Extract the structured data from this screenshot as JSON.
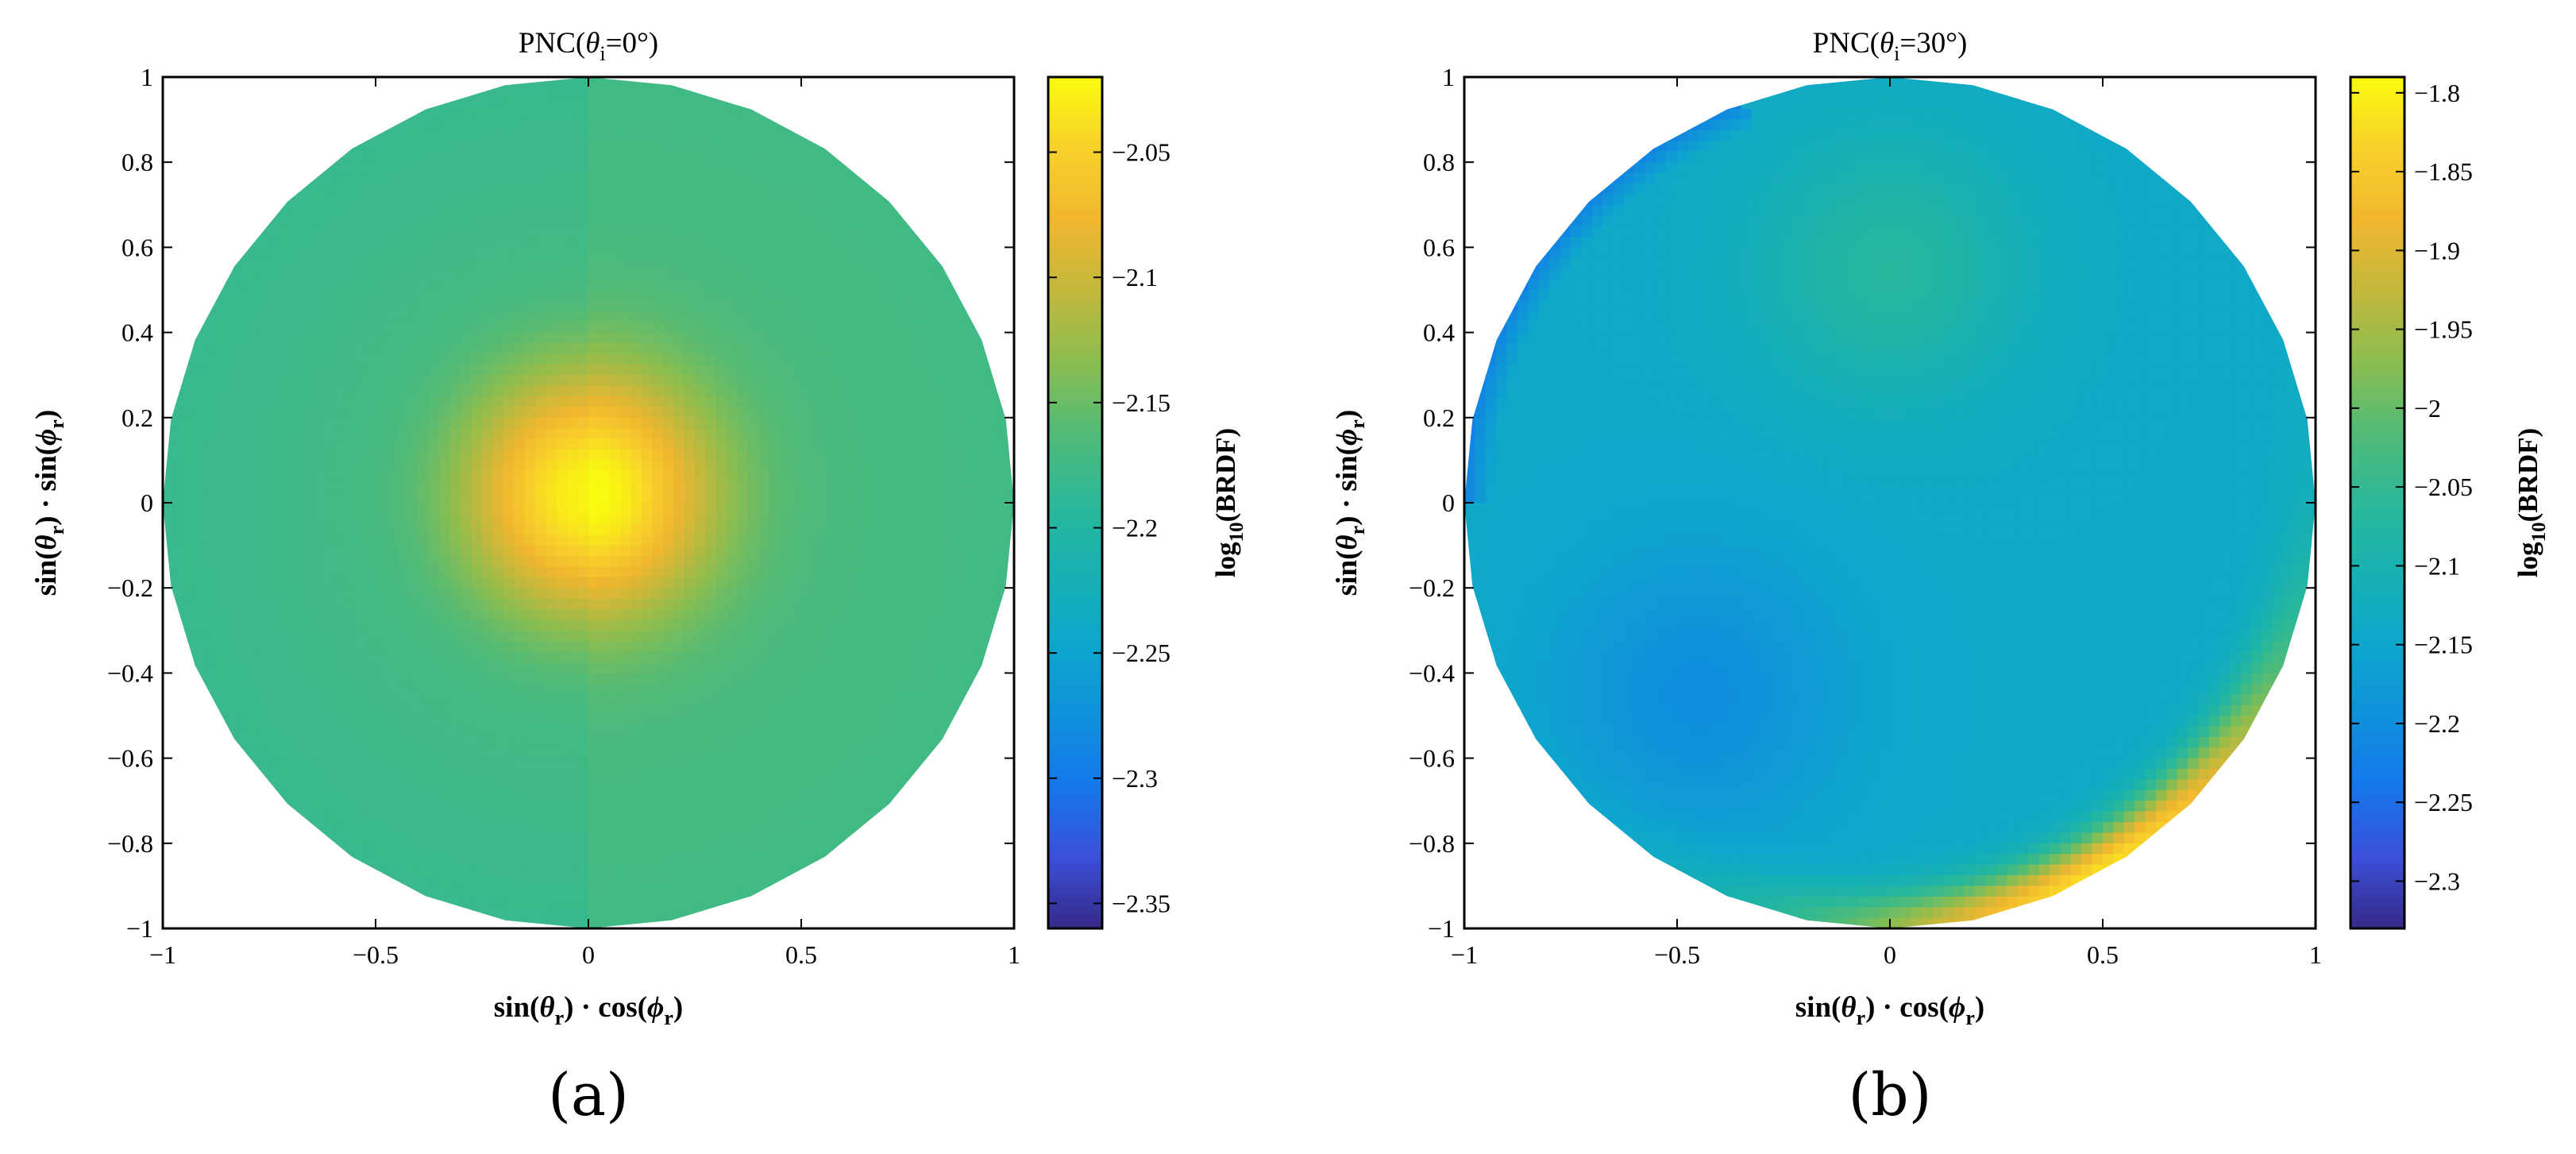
{
  "colors": {
    "parula": [
      "#352a87",
      "#3b4fd9",
      "#1577eb",
      "#0f91db",
      "#0ea6cc",
      "#17b1b3",
      "#2bb898",
      "#52bb76",
      "#8cbd4f",
      "#c3b83c",
      "#f1b72f",
      "#f8d12a",
      "#f9fb0e"
    ],
    "axis": "#000000"
  },
  "chart_data": [
    {
      "id": "a",
      "type": "heatmap",
      "title_prefix": "PNC(",
      "title_theta": "θ",
      "title_sub": "i",
      "title_suffix": "=0°)",
      "panel_label": "(a)",
      "xlabel": {
        "a": "sin(",
        "b": "θ",
        "c": "r",
        "d": ") · cos(",
        "e": "ϕ",
        "f": "r",
        "g": ")"
      },
      "ylabel": {
        "a": "sin(",
        "b": "θ",
        "c": "r",
        "d": ") · sin(",
        "e": "ϕ",
        "f": "r",
        "g": ")"
      },
      "xlim": [
        -1,
        1
      ],
      "ylim": [
        -1,
        1
      ],
      "xticks": [
        "−1",
        "−0.5",
        "0",
        "0.5",
        "1"
      ],
      "yticks": [
        "1",
        "0.8",
        "0.6",
        "0.4",
        "0.2",
        "0",
        "−0.2",
        "−0.4",
        "−0.6",
        "−0.8",
        "−1"
      ],
      "colorbar": {
        "label_a": "log",
        "label_sub": "10",
        "label_b": "(BRDF)",
        "clim": [
          -2.36,
          -2.02
        ],
        "ticks": [
          -2.05,
          -2.1,
          -2.15,
          -2.2,
          -2.25,
          -2.3,
          -2.35
        ],
        "tick_labels": [
          "−2.05",
          "−2.1",
          "−2.15",
          "−2.2",
          "−2.25",
          "−2.3",
          "−2.35"
        ]
      },
      "field": {
        "peak_x": 0.0,
        "peak_y": 0.02,
        "peak_value": -2.025,
        "ring_value": -2.175,
        "edge_value": -2.18,
        "lobe_radius": 0.5
      }
    },
    {
      "id": "b",
      "type": "heatmap",
      "title_prefix": "PNC(",
      "title_theta": "θ",
      "title_sub": "i",
      "title_suffix": "=30°)",
      "panel_label": "(b)",
      "xlabel": {
        "a": "sin(",
        "b": "θ",
        "c": "r",
        "d": ") · cos(",
        "e": "ϕ",
        "f": "r",
        "g": ")"
      },
      "ylabel": {
        "a": "sin(",
        "b": "θ",
        "c": "r",
        "d": ") · sin(",
        "e": "ϕ",
        "f": "r",
        "g": ")"
      },
      "xlim": [
        -1,
        1
      ],
      "ylim": [
        -1,
        1
      ],
      "xticks": [
        "−1",
        "−0.5",
        "0",
        "0.5",
        "1"
      ],
      "yticks": [
        "1",
        "0.8",
        "0.6",
        "0.4",
        "0.2",
        "0",
        "−0.2",
        "−0.4",
        "−0.6",
        "−0.8",
        "−1"
      ],
      "colorbar": {
        "label_a": "log",
        "label_sub": "10",
        "label_b": "(BRDF)",
        "clim": [
          -2.33,
          -1.79
        ],
        "ticks": [
          -1.8,
          -1.85,
          -1.9,
          -1.95,
          -2.0,
          -2.05,
          -2.1,
          -2.15,
          -2.2,
          -2.25,
          -2.3
        ],
        "tick_labels": [
          "−1.8",
          "−1.85",
          "−1.9",
          "−1.95",
          "−2",
          "−2.05",
          "−2.1",
          "−2.15",
          "−2.2",
          "−2.25",
          "−2.3"
        ]
      },
      "field": {
        "base_value": -2.14,
        "hotspot_x": 0.0,
        "hotspot_y": 0.55,
        "hotspot_value": -2.07,
        "rim_direction_deg": -60,
        "rim_peak_value": -1.82,
        "lowlobe_x": -0.45,
        "lowlobe_y": -0.45,
        "lowlobe_value": -2.2
      }
    }
  ]
}
